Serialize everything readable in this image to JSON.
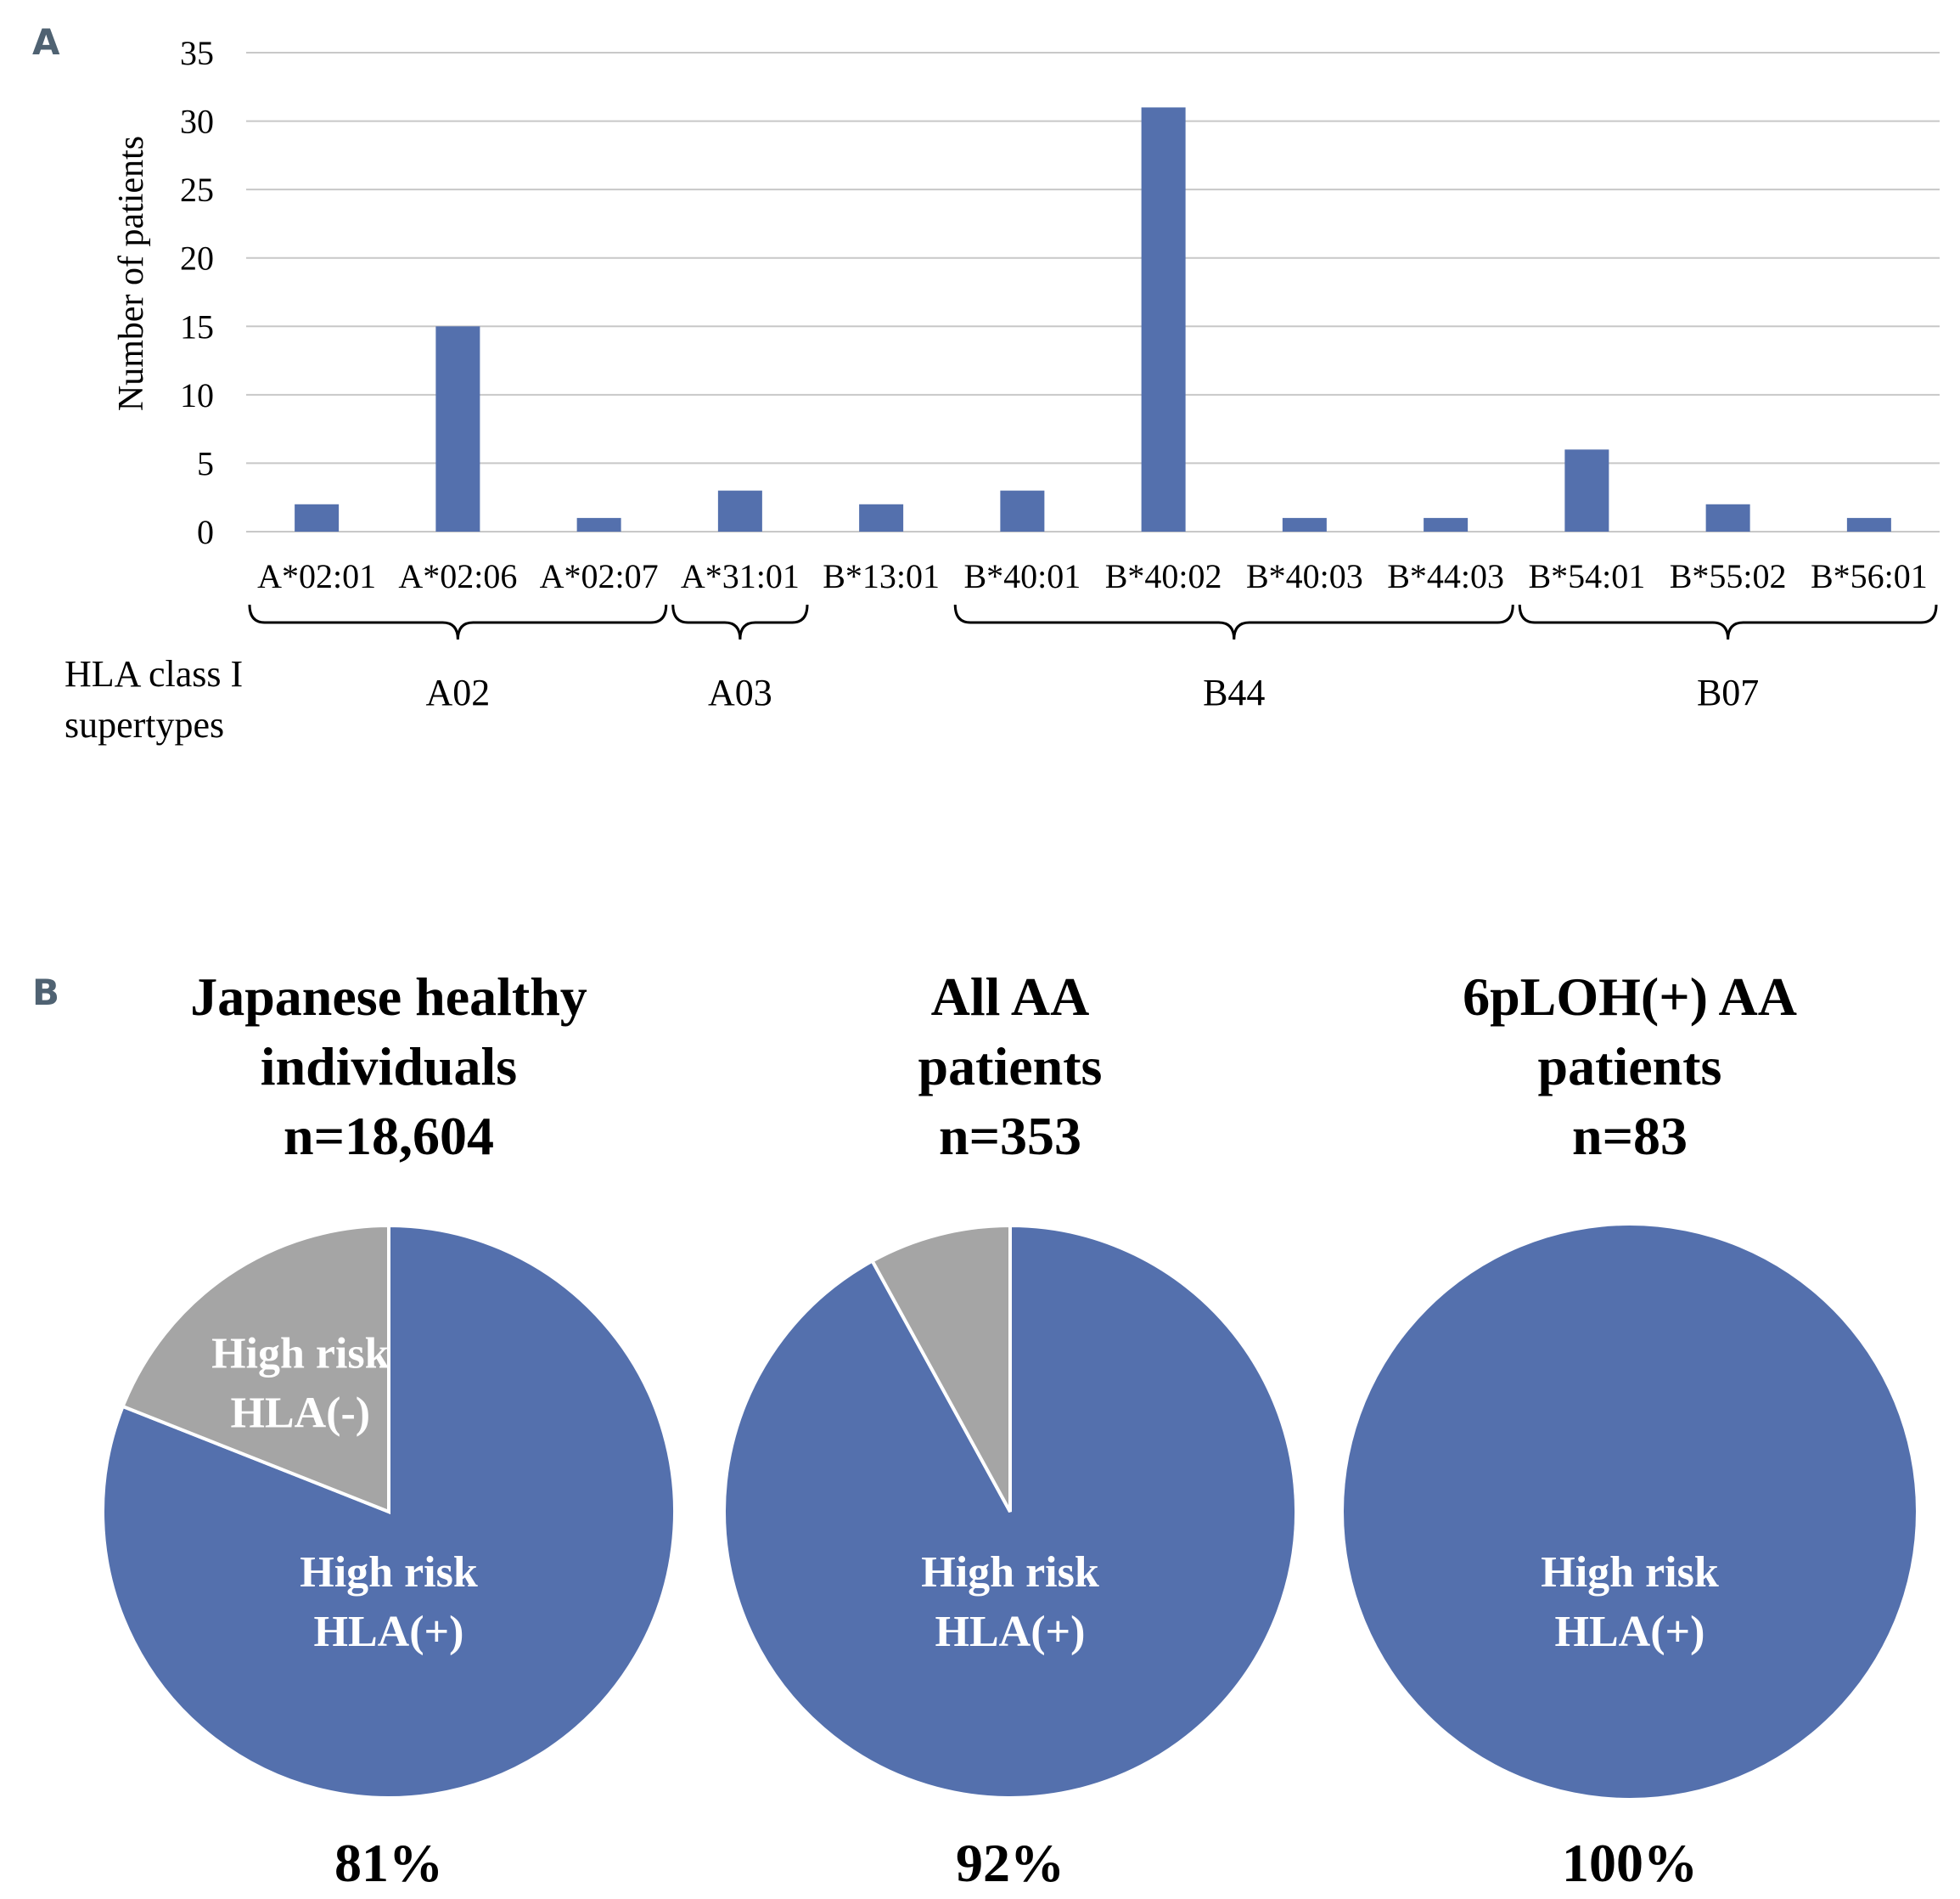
{
  "colors": {
    "bar": "#5470ad",
    "pie_positive": "#5470ad",
    "pie_negative": "#a5a5a5",
    "grid": "#c8c8c8",
    "panel_letter": "#4f6272"
  },
  "panel_a": {
    "letter": "A",
    "chart_data": {
      "type": "bar",
      "categories": [
        "A*02:01",
        "A*02:06",
        "A*02:07",
        "A*31:01",
        "B*13:01",
        "B*40:01",
        "B*40:02",
        "B*40:03",
        "B*44:03",
        "B*54:01",
        "B*55:02",
        "B*56:01"
      ],
      "values": [
        2,
        15,
        1,
        3,
        2,
        3,
        31,
        1,
        1,
        6,
        2,
        1
      ],
      "ylabel": "Number of patients",
      "ylim": [
        0,
        35
      ],
      "yticks": [
        0,
        5,
        10,
        15,
        20,
        25,
        30,
        35
      ],
      "grid": true
    },
    "supertype_label_line1": "HLA class I",
    "supertype_label_line2": "supertypes",
    "groups": [
      {
        "name": "A02",
        "first": 0,
        "last": 2
      },
      {
        "name": "A03",
        "first": 3,
        "last": 3
      },
      {
        "name": "B44",
        "first": 5,
        "last": 8
      },
      {
        "name": "B07",
        "first": 9,
        "last": 11
      }
    ]
  },
  "panel_b": {
    "letter": "B",
    "chart_data": [
      {
        "type": "pie",
        "title_lines": [
          "Japanese healthy",
          "individuals",
          "n=18,604"
        ],
        "slices": [
          {
            "name": "High risk HLA(+)",
            "value": 81
          },
          {
            "name": "High risk HLA(-)",
            "value": 19
          }
        ],
        "positive_label": [
          "High risk",
          "HLA(+)"
        ],
        "negative_label": [
          "High risk",
          "HLA(-)"
        ],
        "percent_text": "81%"
      },
      {
        "type": "pie",
        "title_lines": [
          "All AA",
          "patients",
          "n=353"
        ],
        "slices": [
          {
            "name": "High risk HLA(+)",
            "value": 92
          },
          {
            "name": "High risk HLA(-)",
            "value": 8
          }
        ],
        "positive_label": [
          "High risk",
          "HLA(+)"
        ],
        "negative_label": null,
        "percent_text": "92%"
      },
      {
        "type": "pie",
        "title_lines": [
          "6pLOH(+) AA",
          "patients",
          "n=83"
        ],
        "slices": [
          {
            "name": "High risk HLA(+)",
            "value": 100
          },
          {
            "name": "High risk HLA(-)",
            "value": 0
          }
        ],
        "positive_label": [
          "High risk",
          "HLA(+)"
        ],
        "negative_label": null,
        "percent_text": "100%"
      }
    ]
  }
}
